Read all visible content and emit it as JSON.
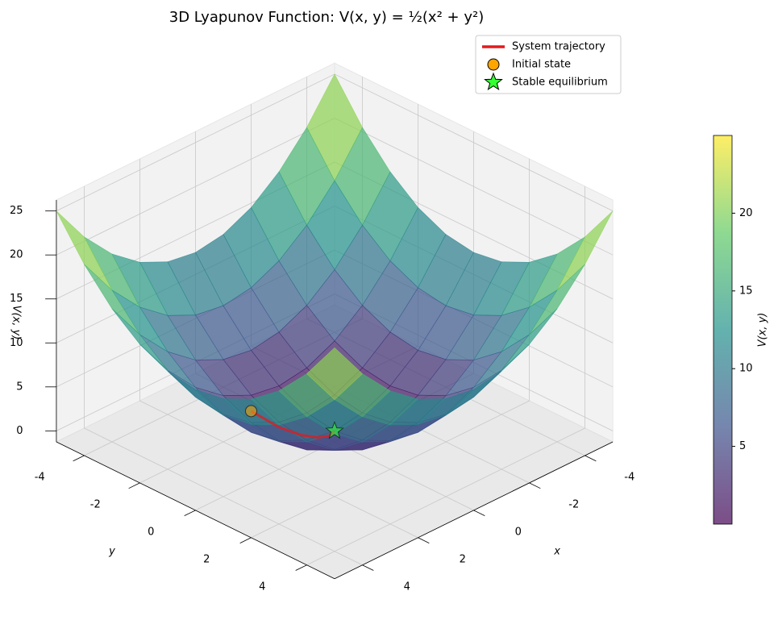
{
  "chart_data": {
    "type": "surface3d",
    "title": "3D Lyapunov Function: V(x, y) = ½(x² + y²)",
    "xlabel": "x",
    "ylabel": "y",
    "zlabel": "V(x, y)",
    "xlim": [
      -5,
      5
    ],
    "ylim": [
      -5,
      5
    ],
    "zlim": [
      -1.25,
      26.25
    ],
    "xticks": [
      -4,
      -2,
      0,
      2,
      4
    ],
    "yticks": [
      -4,
      -2,
      0,
      2,
      4
    ],
    "zticks": [
      0,
      5,
      10,
      15,
      20,
      25
    ],
    "grid": true,
    "surface": {
      "colormap": "viridis",
      "alpha": 0.7,
      "x": [
        -5,
        -4,
        -3,
        -2,
        -1,
        0,
        1,
        2,
        3,
        4,
        5
      ],
      "y": [
        -5,
        -4,
        -3,
        -2,
        -1,
        0,
        1,
        2,
        3,
        4,
        5
      ],
      "z": [
        [
          25,
          20.5,
          17,
          14.5,
          13,
          12.5,
          13,
          14.5,
          17,
          20.5,
          25
        ],
        [
          20.5,
          16,
          12.5,
          10,
          8.5,
          8,
          8.5,
          10,
          12.5,
          16,
          20.5
        ],
        [
          17,
          12.5,
          9,
          6.5,
          5,
          4.5,
          5,
          6.5,
          9,
          12.5,
          17
        ],
        [
          14.5,
          10,
          6.5,
          4,
          2.5,
          2,
          2.5,
          4,
          6.5,
          10,
          14.5
        ],
        [
          13,
          8.5,
          5,
          2.5,
          1,
          0.5,
          1,
          2.5,
          5,
          8.5,
          13
        ],
        [
          12.5,
          8,
          4.5,
          2,
          0.5,
          0,
          0.5,
          2,
          4.5,
          8,
          12.5
        ],
        [
          13,
          8.5,
          5,
          2.5,
          1,
          0.5,
          1,
          2.5,
          5,
          8.5,
          13
        ],
        [
          14.5,
          10,
          6.5,
          4,
          2.5,
          2,
          2.5,
          4,
          6.5,
          10,
          14.5
        ],
        [
          17,
          12.5,
          9,
          6.5,
          5,
          4.5,
          5,
          6.5,
          9,
          12.5,
          17
        ],
        [
          20.5,
          16,
          12.5,
          10,
          8.5,
          8,
          8.5,
          10,
          12.5,
          16,
          20.5
        ],
        [
          25,
          20.5,
          17,
          14.5,
          13,
          12.5,
          13,
          14.5,
          17,
          20.5,
          25
        ]
      ]
    },
    "series": [
      {
        "name": "System trajectory",
        "kind": "line",
        "color": "#e31a1c",
        "x": [
          1.5,
          1.2,
          0.9,
          0.6,
          0.3,
          0
        ],
        "y": [
          -1.5,
          -0.8,
          -0.3,
          0,
          0.1,
          0
        ],
        "z": [
          2.25,
          1.04,
          0.45,
          0.18,
          0.05,
          0
        ]
      },
      {
        "name": "Initial state",
        "kind": "circle",
        "color": "#ffa500",
        "x": [
          1.5
        ],
        "y": [
          -1.5
        ],
        "z": [
          2.25
        ]
      },
      {
        "name": "Stable equilibrium",
        "kind": "star",
        "color": "#33ff33",
        "x": [
          0
        ],
        "y": [
          0
        ],
        "z": [
          0
        ]
      }
    ],
    "legend": "upper right",
    "colorbar_label": "V(x, y)",
    "clim": [
      0,
      25
    ],
    "colorbar_ticks": [
      5,
      10,
      15,
      20
    ]
  }
}
